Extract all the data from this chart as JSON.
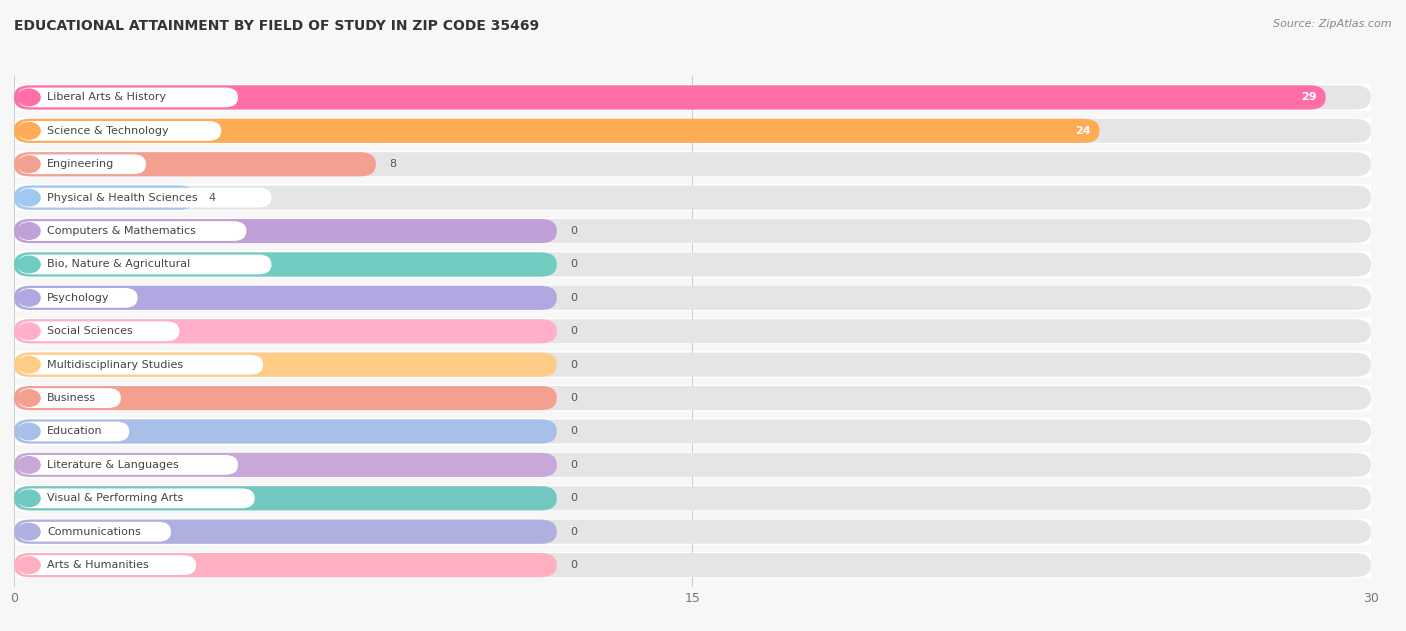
{
  "title": "EDUCATIONAL ATTAINMENT BY FIELD OF STUDY IN ZIP CODE 35469",
  "source": "Source: ZipAtlas.com",
  "categories": [
    "Liberal Arts & History",
    "Science & Technology",
    "Engineering",
    "Physical & Health Sciences",
    "Computers & Mathematics",
    "Bio, Nature & Agricultural",
    "Psychology",
    "Social Sciences",
    "Multidisciplinary Studies",
    "Business",
    "Education",
    "Literature & Languages",
    "Visual & Performing Arts",
    "Communications",
    "Arts & Humanities"
  ],
  "values": [
    29,
    24,
    8,
    4,
    0,
    0,
    0,
    0,
    0,
    0,
    0,
    0,
    0,
    0,
    0
  ],
  "bar_colors": [
    "#FF6EA6",
    "#FFAA55",
    "#F4A090",
    "#A0C8F0",
    "#C0A0D8",
    "#70CCC0",
    "#B0A8E0",
    "#FFB0C8",
    "#FFCC88",
    "#F4A090",
    "#A8C0E8",
    "#C8A8D8",
    "#70C8C0",
    "#B0B0E0",
    "#FFB0C0"
  ],
  "xlim": [
    0,
    30
  ],
  "xticks": [
    0,
    15,
    30
  ],
  "background_color": "#f7f7f7",
  "row_bg_color": "#ffffff",
  "bar_bg_alpha": 0.3,
  "title_fontsize": 10,
  "source_fontsize": 8,
  "label_fontsize": 8
}
